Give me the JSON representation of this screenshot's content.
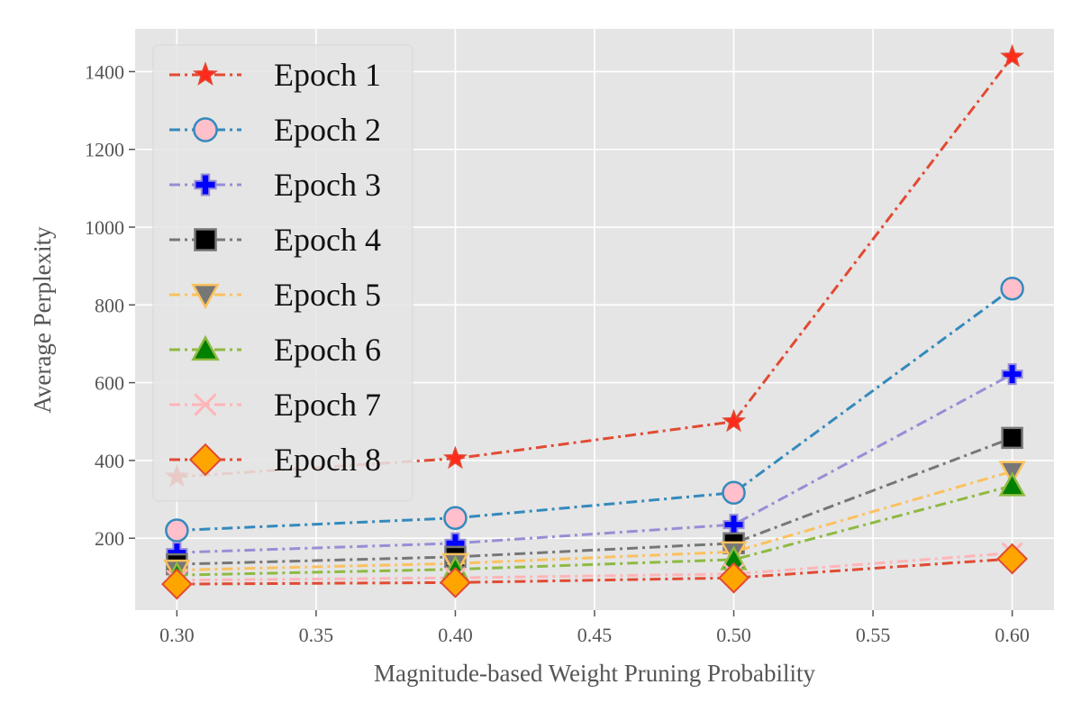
{
  "chart_data": {
    "type": "line",
    "title": "",
    "xlabel": "Magnitude-based Weight Pruning Probability",
    "ylabel": "Average Perplexity",
    "x": [
      0.3,
      0.4,
      0.5,
      0.6
    ],
    "xlim": [
      0.285,
      0.615
    ],
    "ylim": [
      15,
      1510
    ],
    "xticks": [
      0.3,
      0.35,
      0.4,
      0.45,
      0.5,
      0.55,
      0.6
    ],
    "xtick_labels": [
      "0.30",
      "0.35",
      "0.40",
      "0.45",
      "0.50",
      "0.55",
      "0.60"
    ],
    "yticks": [
      200,
      400,
      600,
      800,
      1000,
      1200,
      1400
    ],
    "ytick_labels": [
      "200",
      "400",
      "600",
      "800",
      "1000",
      "1200",
      "1400"
    ],
    "grid": true,
    "background": "#e5e5e5",
    "legend_position": "top-left",
    "series": [
      {
        "name": "Epoch 1",
        "values": [
          358,
          405,
          500,
          1438
        ],
        "line_color": "#e24a33",
        "marker": "star",
        "marker_fill": "#ff2a1a",
        "marker_edge": "#e24a33"
      },
      {
        "name": "Epoch 2",
        "values": [
          220,
          252,
          317,
          842
        ],
        "line_color": "#348abd",
        "marker": "circle",
        "marker_fill": "#ffc0cb",
        "marker_edge": "#348abd"
      },
      {
        "name": "Epoch 3",
        "values": [
          163,
          187,
          235,
          622
        ],
        "line_color": "#988ed5",
        "marker": "plus",
        "marker_fill": "#0000ff",
        "marker_edge": "#988ed5"
      },
      {
        "name": "Epoch 4",
        "values": [
          133,
          152,
          187,
          458
        ],
        "line_color": "#777777",
        "marker": "square",
        "marker_fill": "#000000",
        "marker_edge": "#777777"
      },
      {
        "name": "Epoch 5",
        "values": [
          118,
          135,
          165,
          372
        ],
        "line_color": "#fbc15e",
        "marker": "triangle-down",
        "marker_fill": "#777777",
        "marker_edge": "#fbc15e"
      },
      {
        "name": "Epoch 6",
        "values": [
          105,
          120,
          145,
          335
        ],
        "line_color": "#8eba42",
        "marker": "triangle-up",
        "marker_fill": "#008000",
        "marker_edge": "#8eba42"
      },
      {
        "name": "Epoch 7",
        "values": [
          92,
          98,
          108,
          162
        ],
        "line_color": "#ffb5b8",
        "marker": "x",
        "marker_fill": "#ffb5b8",
        "marker_edge": "#ffb5b8"
      },
      {
        "name": "Epoch 8",
        "values": [
          82,
          86,
          98,
          147
        ],
        "line_color": "#e24a33",
        "marker": "diamond",
        "marker_fill": "#ffa500",
        "marker_edge": "#e24a33"
      }
    ]
  }
}
